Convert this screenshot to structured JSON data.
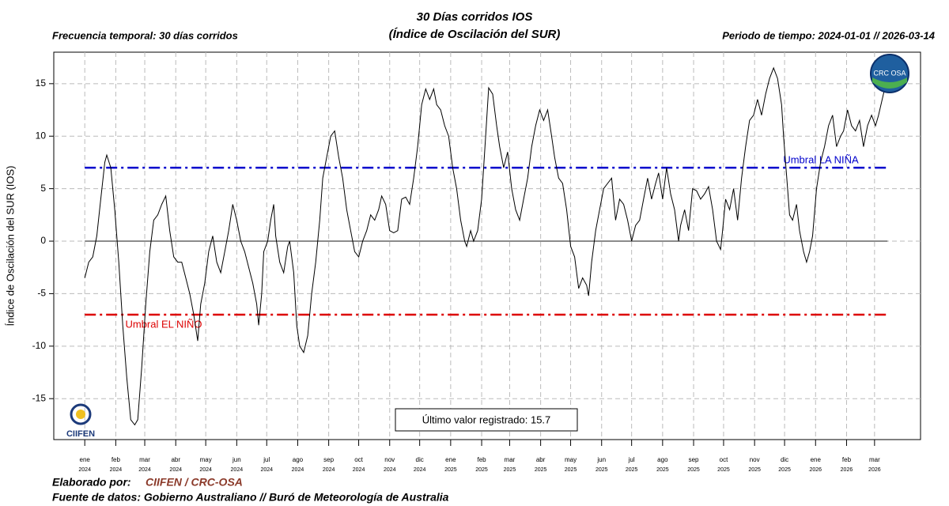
{
  "chart_data": {
    "type": "line",
    "title": "30 Días corridos IOS",
    "subtitle": "(Índice de Oscilación del SUR)",
    "left_note": "Frecuencia temporal: 30 días corridos",
    "right_note": "Periodo de tiempo: 2024-01-01 // 2026-03-14",
    "ylabel": "Índice de Oscilación del SUR (IOS)",
    "color": "#000000",
    "xlim": [
      -31,
      836
    ],
    "ylim": [
      -18.9,
      18
    ],
    "yticks": [
      -15,
      -10,
      -5,
      0,
      5,
      10,
      15
    ],
    "grid": true,
    "xticks": [
      {
        "value": 0,
        "label": "ene",
        "sublabel": "2024"
      },
      {
        "value": 31,
        "label": "feb",
        "sublabel": "2024"
      },
      {
        "value": 60,
        "label": "mar",
        "sublabel": "2024"
      },
      {
        "value": 91,
        "label": "abr",
        "sublabel": "2024"
      },
      {
        "value": 121,
        "label": "may",
        "sublabel": "2024"
      },
      {
        "value": 152,
        "label": "jun",
        "sublabel": "2024"
      },
      {
        "value": 182,
        "label": "jul",
        "sublabel": "2024"
      },
      {
        "value": 213,
        "label": "ago",
        "sublabel": "2024"
      },
      {
        "value": 244,
        "label": "sep",
        "sublabel": "2024"
      },
      {
        "value": 274,
        "label": "oct",
        "sublabel": "2024"
      },
      {
        "value": 305,
        "label": "nov",
        "sublabel": "2024"
      },
      {
        "value": 335,
        "label": "dic",
        "sublabel": "2024"
      },
      {
        "value": 366,
        "label": "ene",
        "sublabel": "2025"
      },
      {
        "value": 397,
        "label": "feb",
        "sublabel": "2025"
      },
      {
        "value": 425,
        "label": "mar",
        "sublabel": "2025"
      },
      {
        "value": 456,
        "label": "abr",
        "sublabel": "2025"
      },
      {
        "value": 486,
        "label": "may",
        "sublabel": "2025"
      },
      {
        "value": 517,
        "label": "jun",
        "sublabel": "2025"
      },
      {
        "value": 547,
        "label": "jul",
        "sublabel": "2025"
      },
      {
        "value": 578,
        "label": "ago",
        "sublabel": "2025"
      },
      {
        "value": 609,
        "label": "sep",
        "sublabel": "2025"
      },
      {
        "value": 639,
        "label": "oct",
        "sublabel": "2025"
      },
      {
        "value": 670,
        "label": "nov",
        "sublabel": "2025"
      },
      {
        "value": 700,
        "label": "dic",
        "sublabel": "2025"
      },
      {
        "value": 731,
        "label": "ene",
        "sublabel": "2026"
      },
      {
        "value": 762,
        "label": "feb",
        "sublabel": "2026"
      },
      {
        "value": 790,
        "label": "mar",
        "sublabel": "2026"
      }
    ],
    "reference_line": 0,
    "thresholds": [
      {
        "value": 7,
        "label": "Umbral LA NIÑA",
        "color": "#0000cc"
      },
      {
        "value": -7,
        "label": "Umbral EL NIÑO",
        "color": "#dd0000"
      }
    ],
    "annotation": "Último valor registrado: 15.7",
    "x": [
      0,
      4,
      8,
      12,
      16,
      20,
      22,
      26,
      30,
      34,
      38,
      42,
      46,
      50,
      53,
      57,
      61,
      65,
      69,
      73,
      77,
      81,
      85,
      89,
      93,
      97,
      101,
      105,
      109,
      113,
      116,
      120,
      124,
      128,
      132,
      136,
      140,
      144,
      148,
      152,
      156,
      160,
      164,
      168,
      172,
      174,
      177,
      179,
      183,
      186,
      189,
      191,
      195,
      199,
      203,
      205,
      209,
      212,
      215,
      219,
      223,
      227,
      231,
      235,
      238,
      242,
      246,
      250,
      254,
      258,
      262,
      266,
      270,
      274,
      278,
      282,
      286,
      290,
      294,
      297,
      301,
      305,
      309,
      313,
      317,
      321,
      325,
      329,
      333,
      337,
      341,
      345,
      349,
      352,
      356,
      360,
      364,
      368,
      372,
      376,
      380,
      382,
      386,
      389,
      393,
      397,
      401,
      404,
      408,
      412,
      415,
      419,
      423,
      427,
      431,
      435,
      439,
      443,
      447,
      451,
      455,
      459,
      463,
      467,
      470,
      474,
      478,
      482,
      486,
      490,
      494,
      498,
      502,
      504,
      507,
      511,
      515,
      519,
      523,
      527,
      531,
      535,
      539,
      543,
      547,
      551,
      555,
      559,
      563,
      567,
      571,
      574,
      578,
      582,
      586,
      590,
      594,
      596,
      600,
      604,
      608,
      612,
      616,
      620,
      624,
      628,
      632,
      636,
      638,
      641,
      645,
      649,
      653,
      657,
      661,
      665,
      669,
      673,
      677,
      681,
      685,
      689,
      693,
      697,
      699,
      703,
      705,
      708,
      712,
      715,
      719,
      722,
      725,
      728,
      732,
      736,
      740,
      744,
      748,
      752,
      756,
      759,
      763,
      767,
      771,
      775,
      779,
      783,
      787,
      791,
      794,
      803
    ],
    "values": [
      -3.5,
      -2,
      -1.5,
      0.5,
      4,
      7.5,
      8.2,
      7,
      3,
      -2,
      -8,
      -13,
      -17,
      -17.5,
      -17,
      -12,
      -6,
      -1,
      2,
      2.5,
      3.5,
      4.3,
      1,
      -1.5,
      -2,
      -2,
      -3.5,
      -5,
      -7,
      -9.5,
      -6,
      -4,
      -1,
      0.5,
      -2,
      -3,
      -1,
      1,
      3.5,
      2,
      0,
      -1,
      -2.5,
      -4,
      -6,
      -8,
      -5,
      -1,
      0,
      2,
      3.5,
      0.5,
      -2,
      -3,
      -0.5,
      0,
      -3,
      -8,
      -10,
      -10.6,
      -9,
      -5,
      -2,
      2,
      6,
      8,
      10,
      10.5,
      8,
      6,
      3,
      1,
      -1,
      -1.5,
      0,
      1,
      2.5,
      2,
      3,
      4.3,
      3.5,
      1,
      0.8,
      1,
      4,
      4.2,
      3.5,
      6,
      9,
      13,
      14.5,
      13.5,
      14.5,
      13,
      12.5,
      11,
      10,
      7,
      5,
      2,
      0,
      -0.5,
      1,
      0,
      1,
      4,
      10,
      14.6,
      14,
      11,
      9,
      7,
      8.5,
      5,
      3,
      2,
      4,
      6,
      9,
      11,
      12.5,
      11.5,
      12.5,
      10,
      8,
      6,
      5.5,
      3,
      -0.5,
      -1.5,
      -4.5,
      -3.5,
      -4.2,
      -5.2,
      -2,
      1,
      3,
      5,
      5.5,
      6,
      2,
      4,
      3.5,
      2,
      0,
      1.5,
      2,
      4,
      6,
      4,
      5.5,
      6.5,
      4,
      7,
      4.5,
      3,
      0,
      1.5,
      3,
      1,
      5,
      4.8,
      4,
      4.5,
      5.2,
      3,
      0,
      -0.8,
      1,
      4,
      3,
      5,
      2,
      6,
      9,
      11.5,
      12,
      13.5,
      12,
      14,
      15.5,
      16.5,
      15.5,
      13,
      10,
      5,
      2.5,
      2,
      3.5,
      1,
      -1,
      -2,
      -1,
      0.5,
      5,
      7.5,
      9,
      11,
      12,
      9,
      10,
      10.5,
      12.5,
      11,
      10.5,
      11.5,
      9,
      11,
      12,
      11,
      12,
      15.7
    ]
  },
  "footer": {
    "made_by_label": "Elaborado por:",
    "made_by": "CIIFEN / CRC-OSA",
    "source": "Fuente de datos: Gobierno Australiano // Buró de Meteorología de Australia"
  },
  "logos": {
    "crc": "CRC OSA",
    "ciifen": "CIIFEN"
  }
}
